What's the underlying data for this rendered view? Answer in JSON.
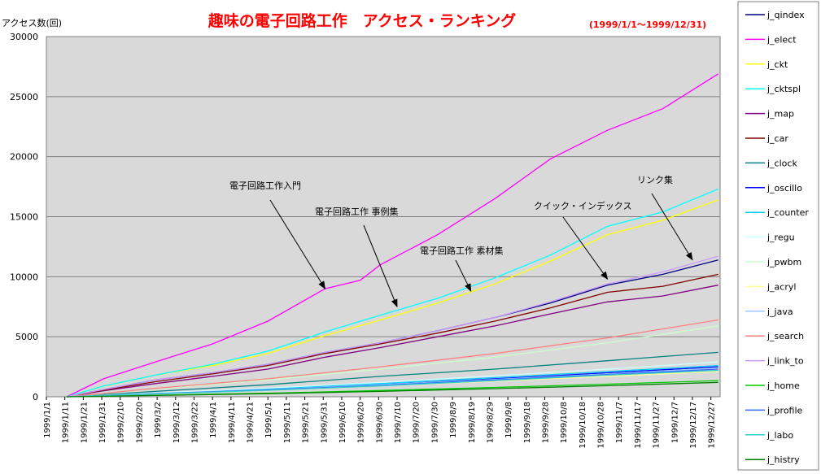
{
  "chart_data": {
    "type": "line",
    "title": "趣味の電子回路工作　アクセス・ランキング",
    "date_range_label": "(1999/1/1～1999/12/31)",
    "ylabel": "アクセス数(回)",
    "ylim": [
      0,
      30000
    ],
    "yticks": [
      0,
      5000,
      10000,
      15000,
      20000,
      25000,
      30000
    ],
    "x_start": "1999/1/1",
    "x_end": "1999/12/31",
    "x_tick_step_days": 10,
    "x_ticks": [
      "1999/1/1",
      "1999/1/11",
      "1999/1/21",
      "1999/1/31",
      "1999/2/10",
      "1999/2/20",
      "1999/3/2",
      "1999/3/12",
      "1999/3/22",
      "1999/4/1",
      "1999/4/11",
      "1999/4/21",
      "1999/5/1",
      "1999/5/11",
      "1999/5/21",
      "1999/5/31",
      "1999/6/10",
      "1999/6/20",
      "1999/6/30",
      "1999/7/10",
      "1999/7/20",
      "1999/7/30",
      "1999/8/9",
      "1999/8/19",
      "1999/8/29",
      "1999/9/8",
      "1999/9/18",
      "1999/9/28",
      "1999/10/8",
      "1999/10/18",
      "1999/10/28",
      "1999/11/7",
      "1999/11/17",
      "1999/11/27",
      "1999/12/7",
      "1999/12/17",
      "1999/12/27"
    ],
    "grid": "horizontal",
    "background": "#d9d9d9",
    "legend_position": "right",
    "series": [
      {
        "name": "j_qindex",
        "color": "#000080",
        "points": [
          [
            "1999/1/12",
            0
          ],
          [
            "1999/2/1",
            600
          ],
          [
            "1999/3/1",
            1400
          ],
          [
            "1999/4/1",
            2000
          ],
          [
            "1999/5/1",
            2700
          ],
          [
            "1999/6/1",
            3700
          ],
          [
            "1999/7/1",
            4500
          ],
          [
            "1999/8/1",
            5500
          ],
          [
            "1999/9/1",
            6600
          ],
          [
            "1999/10/1",
            7800
          ],
          [
            "1999/11/1",
            9300
          ],
          [
            "1999/12/1",
            10200
          ],
          [
            "1999/12/31",
            11400
          ]
        ]
      },
      {
        "name": "j_elect",
        "color": "#ff00ff",
        "points": [
          [
            "1999/1/12",
            0
          ],
          [
            "1999/2/1",
            1500
          ],
          [
            "1999/3/1",
            2900
          ],
          [
            "1999/4/1",
            4400
          ],
          [
            "1999/5/1",
            6300
          ],
          [
            "1999/6/1",
            9000
          ],
          [
            "1999/6/20",
            9700
          ],
          [
            "1999/7/1",
            11000
          ],
          [
            "1999/8/1",
            13500
          ],
          [
            "1999/9/1",
            16500
          ],
          [
            "1999/10/1",
            19800
          ],
          [
            "1999/11/1",
            22200
          ],
          [
            "1999/12/1",
            24000
          ],
          [
            "1999/12/31",
            26900
          ]
        ]
      },
      {
        "name": "j_ckt",
        "color": "#ffff00",
        "points": [
          [
            "1999/1/12",
            0
          ],
          [
            "1999/2/1",
            900
          ],
          [
            "1999/3/1",
            1800
          ],
          [
            "1999/4/1",
            2600
          ],
          [
            "1999/5/1",
            3600
          ],
          [
            "1999/6/1",
            5100
          ],
          [
            "1999/7/1",
            6400
          ],
          [
            "1999/8/1",
            7800
          ],
          [
            "1999/9/1",
            9400
          ],
          [
            "1999/10/1",
            11300
          ],
          [
            "1999/11/1",
            13500
          ],
          [
            "1999/12/1",
            14700
          ],
          [
            "1999/12/31",
            16400
          ]
        ]
      },
      {
        "name": "j_cktspl",
        "color": "#00ffff",
        "points": [
          [
            "1999/1/12",
            0
          ],
          [
            "1999/2/1",
            900
          ],
          [
            "1999/3/1",
            1800
          ],
          [
            "1999/4/1",
            2700
          ],
          [
            "1999/5/1",
            3800
          ],
          [
            "1999/6/1",
            5400
          ],
          [
            "1999/7/1",
            6800
          ],
          [
            "1999/8/1",
            8200
          ],
          [
            "1999/9/1",
            9900
          ],
          [
            "1999/10/1",
            11800
          ],
          [
            "1999/11/1",
            14200
          ],
          [
            "1999/12/1",
            15400
          ],
          [
            "1999/12/31",
            17300
          ]
        ]
      },
      {
        "name": "j_map",
        "color": "#800080",
        "points": [
          [
            "1999/1/12",
            0
          ],
          [
            "1999/2/1",
            500
          ],
          [
            "1999/3/1",
            1100
          ],
          [
            "1999/4/1",
            1700
          ],
          [
            "1999/5/1",
            2300
          ],
          [
            "1999/6/1",
            3300
          ],
          [
            "1999/7/1",
            4100
          ],
          [
            "1999/8/1",
            5000
          ],
          [
            "1999/9/1",
            5900
          ],
          [
            "1999/10/1",
            6900
          ],
          [
            "1999/11/1",
            7900
          ],
          [
            "1999/12/1",
            8400
          ],
          [
            "1999/12/31",
            9300
          ]
        ]
      },
      {
        "name": "j_car",
        "color": "#800000",
        "points": [
          [
            "1999/1/12",
            0
          ],
          [
            "1999/2/1",
            550
          ],
          [
            "1999/3/1",
            1250
          ],
          [
            "1999/4/1",
            1900
          ],
          [
            "1999/5/1",
            2600
          ],
          [
            "1999/6/1",
            3600
          ],
          [
            "1999/7/1",
            4400
          ],
          [
            "1999/8/1",
            5300
          ],
          [
            "1999/9/1",
            6300
          ],
          [
            "1999/10/1",
            7400
          ],
          [
            "1999/11/1",
            8700
          ],
          [
            "1999/12/1",
            9200
          ],
          [
            "1999/12/31",
            10200
          ]
        ]
      },
      {
        "name": "j_clock",
        "color": "#008080",
        "points": [
          [
            "1999/1/12",
            0
          ],
          [
            "1999/3/1",
            450
          ],
          [
            "1999/5/1",
            1000
          ],
          [
            "1999/7/1",
            1700
          ],
          [
            "1999/9/1",
            2300
          ],
          [
            "1999/11/1",
            3000
          ],
          [
            "1999/12/31",
            3700
          ]
        ]
      },
      {
        "name": "j_oscillo",
        "color": "#0000ff",
        "points": [
          [
            "1999/1/12",
            0
          ],
          [
            "1999/3/1",
            250
          ],
          [
            "1999/5/1",
            600
          ],
          [
            "1999/7/1",
            1000
          ],
          [
            "1999/9/1",
            1500
          ],
          [
            "1999/11/1",
            2000
          ],
          [
            "1999/12/31",
            2500
          ]
        ]
      },
      {
        "name": "j_counter",
        "color": "#00ccff",
        "points": [
          [
            "1999/1/12",
            0
          ],
          [
            "1999/3/1",
            280
          ],
          [
            "1999/5/1",
            650
          ],
          [
            "1999/7/1",
            1100
          ],
          [
            "1999/9/1",
            1600
          ],
          [
            "1999/11/1",
            2100
          ],
          [
            "1999/12/31",
            2600
          ]
        ]
      },
      {
        "name": "j_regu",
        "color": "#ccffff",
        "points": [
          [
            "1999/1/12",
            0
          ],
          [
            "1999/3/1",
            320
          ],
          [
            "1999/5/1",
            720
          ],
          [
            "1999/7/1",
            1200
          ],
          [
            "1999/9/1",
            1750
          ],
          [
            "1999/11/1",
            2300
          ],
          [
            "1999/12/31",
            2900
          ]
        ]
      },
      {
        "name": "j_pwbm",
        "color": "#ccffcc",
        "points": [
          [
            "1999/1/12",
            0
          ],
          [
            "1999/3/1",
            650
          ],
          [
            "1999/5/1",
            1400
          ],
          [
            "1999/7/1",
            2300
          ],
          [
            "1999/9/1",
            3300
          ],
          [
            "1999/11/1",
            4500
          ],
          [
            "1999/12/31",
            5900
          ]
        ]
      },
      {
        "name": "j_acryl",
        "color": "#ffff99",
        "points": [
          [
            "1999/1/12",
            0
          ],
          [
            "1999/3/1",
            250
          ],
          [
            "1999/5/1",
            550
          ],
          [
            "1999/7/1",
            900
          ],
          [
            "1999/9/1",
            1300
          ],
          [
            "1999/11/1",
            1700
          ],
          [
            "1999/12/31",
            2100
          ]
        ]
      },
      {
        "name": "j_java",
        "color": "#99ccff",
        "points": [
          [
            "1999/1/12",
            0
          ],
          [
            "1999/3/1",
            270
          ],
          [
            "1999/5/1",
            600
          ],
          [
            "1999/7/1",
            1000
          ],
          [
            "1999/9/1",
            1450
          ],
          [
            "1999/11/1",
            1900
          ],
          [
            "1999/12/31",
            2400
          ]
        ]
      },
      {
        "name": "j_search",
        "color": "#ff8080",
        "points": [
          [
            "1999/1/12",
            0
          ],
          [
            "1999/3/1",
            700
          ],
          [
            "1999/5/1",
            1500
          ],
          [
            "1999/7/1",
            2500
          ],
          [
            "1999/9/1",
            3600
          ],
          [
            "1999/11/1",
            4900
          ],
          [
            "1999/12/31",
            6400
          ]
        ]
      },
      {
        "name": "j_link_to",
        "color": "#cc99ff",
        "points": [
          [
            "1999/1/12",
            0
          ],
          [
            "1999/2/1",
            600
          ],
          [
            "1999/3/1",
            1400
          ],
          [
            "1999/4/1",
            2000
          ],
          [
            "1999/5/1",
            2700
          ],
          [
            "1999/6/1",
            3700
          ],
          [
            "1999/7/1",
            4500
          ],
          [
            "1999/8/1",
            5500
          ],
          [
            "1999/9/1",
            6600
          ],
          [
            "1999/10/1",
            7900
          ],
          [
            "1999/11/1",
            9400
          ],
          [
            "1999/12/1",
            10400
          ],
          [
            "1999/12/31",
            11700
          ]
        ]
      },
      {
        "name": "j_home",
        "color": "#00cc00",
        "points": [
          [
            "1999/1/12",
            0
          ],
          [
            "1999/3/1",
            130
          ],
          [
            "1999/5/1",
            300
          ],
          [
            "1999/7/1",
            520
          ],
          [
            "1999/9/1",
            780
          ],
          [
            "1999/11/1",
            1050
          ],
          [
            "1999/12/31",
            1350
          ]
        ]
      },
      {
        "name": "j_profile",
        "color": "#3366ff",
        "points": [
          [
            "1999/1/12",
            0
          ],
          [
            "1999/3/1",
            260
          ],
          [
            "1999/5/1",
            580
          ],
          [
            "1999/7/1",
            950
          ],
          [
            "1999/9/1",
            1400
          ],
          [
            "1999/11/1",
            1850
          ],
          [
            "1999/12/31",
            2300
          ]
        ]
      },
      {
        "name": "j_labo",
        "color": "#33cccc",
        "points": [
          [
            "1999/1/12",
            0
          ],
          [
            "1999/3/1",
            240
          ],
          [
            "1999/5/1",
            540
          ],
          [
            "1999/7/1",
            900
          ],
          [
            "1999/9/1",
            1350
          ],
          [
            "1999/11/1",
            1800
          ],
          [
            "1999/12/31",
            2200
          ]
        ]
      },
      {
        "name": "j_histry",
        "color": "#008000",
        "points": [
          [
            "1999/1/12",
            0
          ],
          [
            "1999/3/1",
            110
          ],
          [
            "1999/5/1",
            260
          ],
          [
            "1999/7/1",
            450
          ],
          [
            "1999/9/1",
            680
          ],
          [
            "1999/11/1",
            920
          ],
          [
            "1999/12/31",
            1200
          ]
        ]
      }
    ],
    "annotations": [
      {
        "text": "電子回路工作入門",
        "target": [
          "1999/6/1",
          9000
        ]
      },
      {
        "text": "電子回路工作 事例集",
        "target": [
          "1999/7/10",
          7500
        ]
      },
      {
        "text": "電子回路工作 素材集",
        "target": [
          "1999/8/19",
          8800
        ]
      },
      {
        "text": "クイック・インデックス",
        "target": [
          "1999/11/1",
          9800
        ]
      },
      {
        "text": "リンク集",
        "target": [
          "1999/12/17",
          11400
        ]
      }
    ]
  }
}
